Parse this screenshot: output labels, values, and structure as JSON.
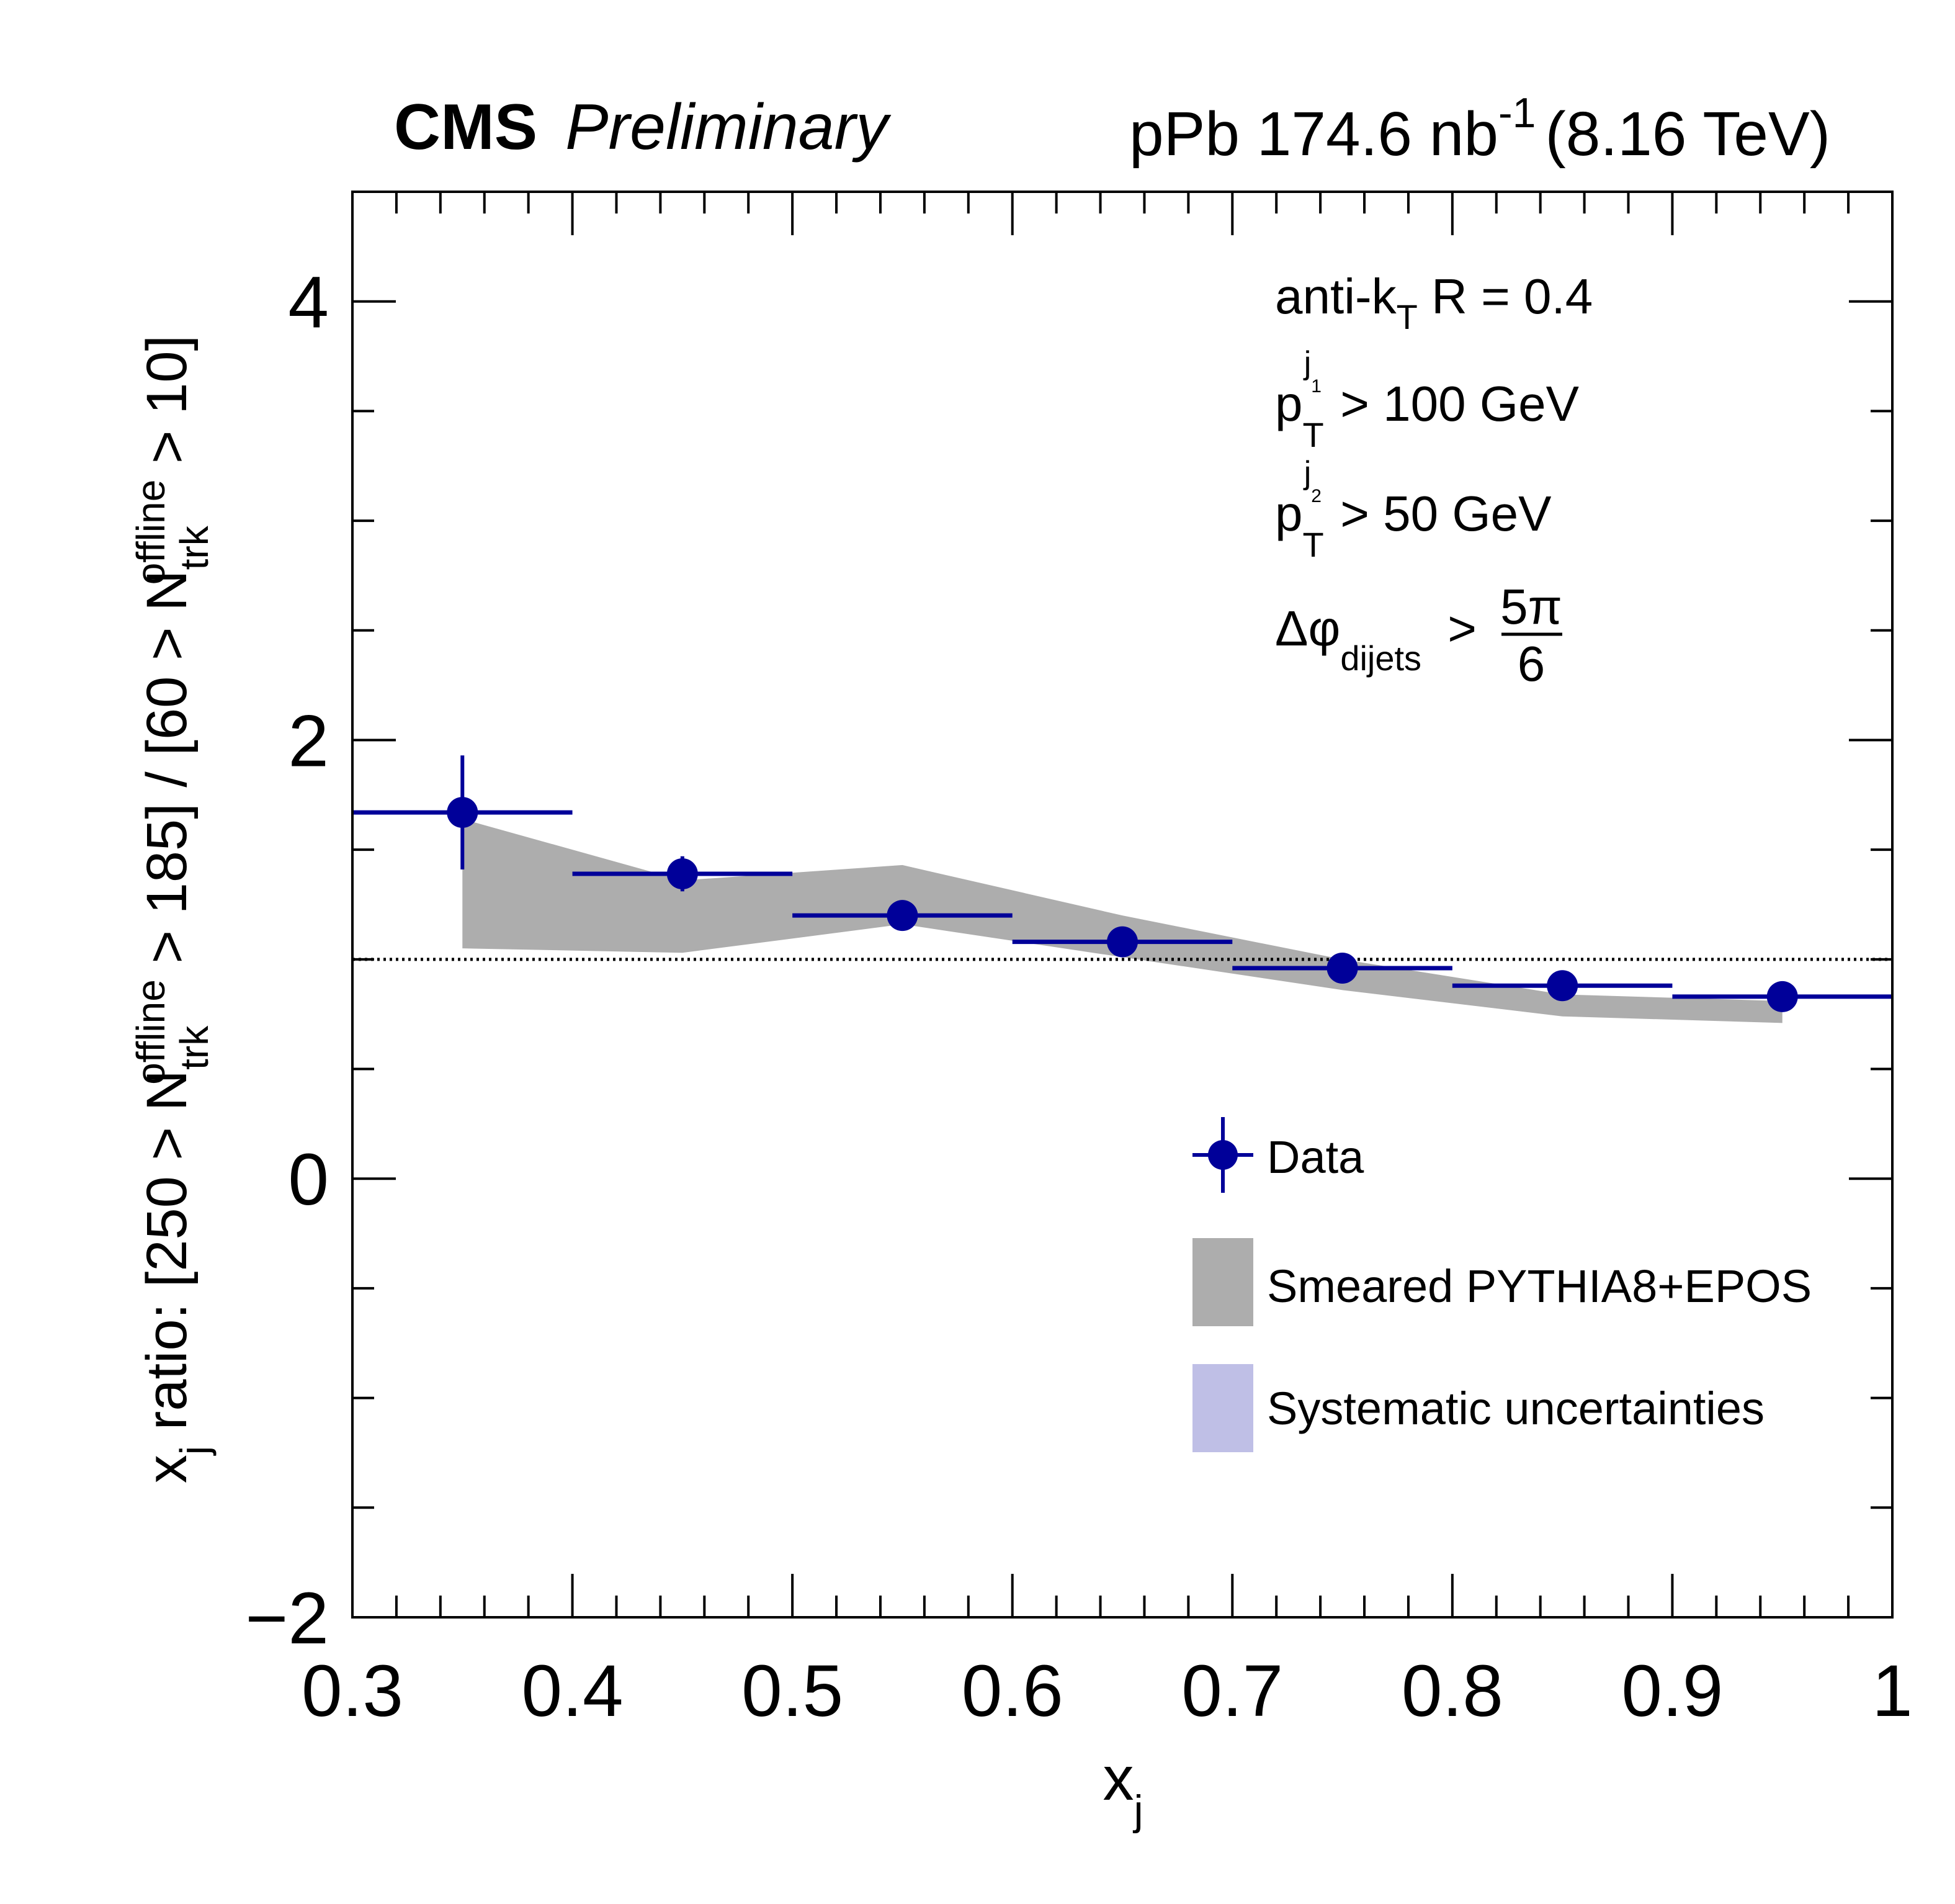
{
  "chart_data": {
    "type": "scatter",
    "header": {
      "experiment": "CMS",
      "status": "Preliminary",
      "lumi_text": "pPb 174.6 nb",
      "lumi_sup": "-1",
      "energy": "(8.16 TeV)"
    },
    "xlabel": "x",
    "xlabel_sub": "j",
    "ylabel_parts": [
      "x",
      "j",
      " ratio: [250 > N",
      "trk",
      "offline",
      " > 185] / [60 > N",
      "trk",
      "offline",
      " > 10]"
    ],
    "xlim": [
      0.3,
      1.0
    ],
    "ylim": [
      -2,
      4.5
    ],
    "xticks": [
      "0.3",
      "0.4",
      "0.5",
      "0.6",
      "0.7",
      "0.8",
      "0.9",
      "1"
    ],
    "yticks": [
      "−2",
      "0",
      "2",
      "4"
    ],
    "reference_line": 1.0,
    "annotations": {
      "algo": "anti-k",
      "algo_sub": "T",
      "algo_rest": " R = 0.4",
      "pt1_p": "p",
      "pt1_sub": "T",
      "pt1_sup": "j",
      "pt1_supsub": "1",
      "pt1_rest": " > 100 GeV",
      "pt2_p": "p",
      "pt2_sub": "T",
      "pt2_sup": "j",
      "pt2_supsub": "2",
      "pt2_rest": " > 50 GeV",
      "dphi": "Δφ",
      "dphi_sub": "dijets",
      "dphi_gt": " >",
      "dphi_num": "5π",
      "dphi_den": "6"
    },
    "series": [
      {
        "name": "Data",
        "color": "#000099",
        "x": [
          0.35,
          0.45,
          0.55,
          0.65,
          0.75,
          0.85,
          0.95
        ],
        "xerr": 0.05,
        "y": [
          1.67,
          1.39,
          1.2,
          1.08,
          0.96,
          0.88,
          0.83
        ],
        "yerr": [
          0.26,
          0.08,
          0.02,
          0.02,
          0.02,
          0.02,
          0.02
        ]
      },
      {
        "name": "Smeared PYTHIA8+EPOS",
        "color": "#adadad",
        "x": [
          0.35,
          0.45,
          0.55,
          0.65,
          0.75,
          0.85,
          0.95
        ],
        "upper": [
          1.64,
          1.36,
          1.43,
          1.2,
          1.0,
          0.84,
          0.81
        ],
        "lower": [
          1.05,
          1.03,
          1.16,
          1.01,
          0.86,
          0.74,
          0.71
        ]
      },
      {
        "name": "Systematic uncertainties",
        "color": "#bfbfe6"
      }
    ],
    "legend_position": "bottom-right"
  }
}
